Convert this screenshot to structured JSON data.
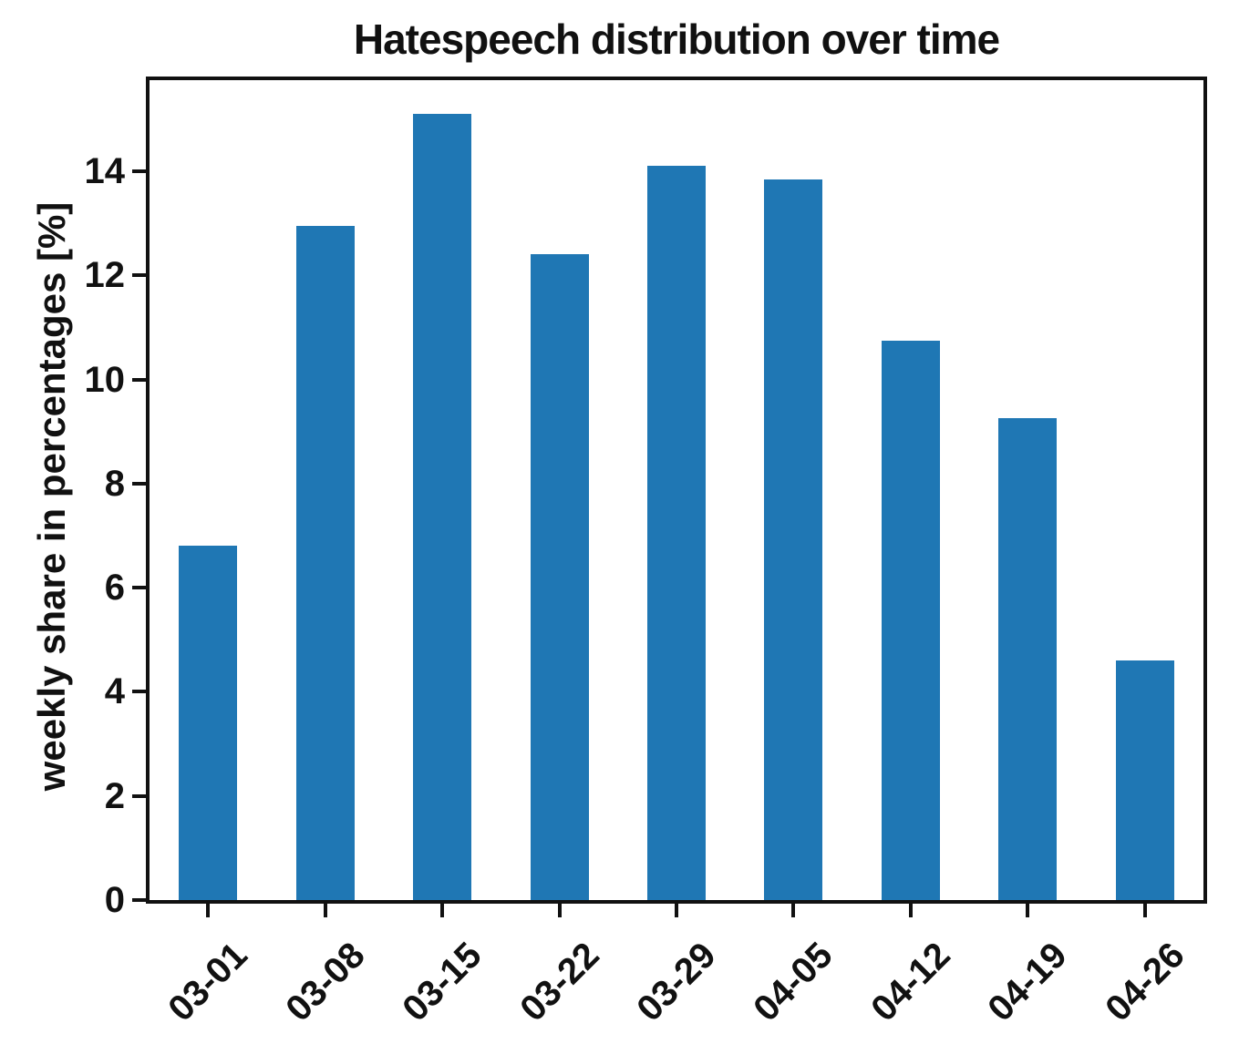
{
  "chart_data": {
    "type": "bar",
    "title": "Hatespeech distribution over time",
    "xlabel": "",
    "ylabel": "weekly share in percentages [%]",
    "categories": [
      "03-01",
      "03-08",
      "03-15",
      "03-22",
      "03-29",
      "04-05",
      "04-12",
      "04-19",
      "04-26"
    ],
    "values": [
      6.8,
      12.95,
      15.1,
      12.4,
      14.1,
      13.85,
      10.75,
      9.25,
      4.6
    ],
    "yticks": [
      0,
      2,
      4,
      6,
      8,
      10,
      12,
      14
    ],
    "ylim": [
      0,
      15.75
    ],
    "x_tick_rotation": 45,
    "grid": false,
    "legend": null,
    "bar_color": "#1f77b4",
    "axis_color": "#111111",
    "background_color": "#ffffff"
  }
}
